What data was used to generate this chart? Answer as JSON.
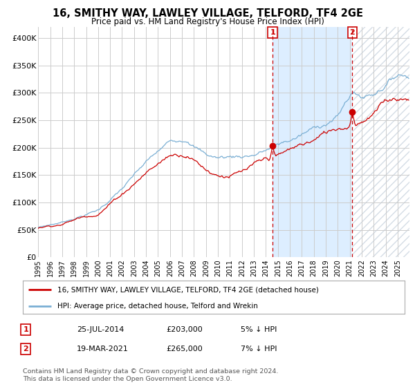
{
  "title": "16, SMITHY WAY, LAWLEY VILLAGE, TELFORD, TF4 2GE",
  "subtitle": "Price paid vs. HM Land Registry's House Price Index (HPI)",
  "ylim": [
    0,
    420000
  ],
  "yticks": [
    0,
    50000,
    100000,
    150000,
    200000,
    250000,
    300000,
    350000,
    400000
  ],
  "ytick_labels": [
    "£0",
    "£50K",
    "£100K",
    "£150K",
    "£200K",
    "£250K",
    "£300K",
    "£350K",
    "£400K"
  ],
  "red_line_color": "#cc0000",
  "blue_line_color": "#7aafd4",
  "shade_color": "#ddeeff",
  "transaction1_year": 2014.56,
  "transaction1_price": 203000,
  "transaction1_date": "25-JUL-2014",
  "transaction1_hpi": "5% ↓ HPI",
  "transaction2_year": 2021.21,
  "transaction2_price": 265000,
  "transaction2_date": "19-MAR-2021",
  "transaction2_hpi": "7% ↓ HPI",
  "legend_red": "16, SMITHY WAY, LAWLEY VILLAGE, TELFORD, TF4 2GE (detached house)",
  "legend_blue": "HPI: Average price, detached house, Telford and Wrekin",
  "footer": "Contains HM Land Registry data © Crown copyright and database right 2024.\nThis data is licensed under the Open Government Licence v3.0.",
  "background_color": "#ffffff",
  "grid_color": "#cccccc"
}
